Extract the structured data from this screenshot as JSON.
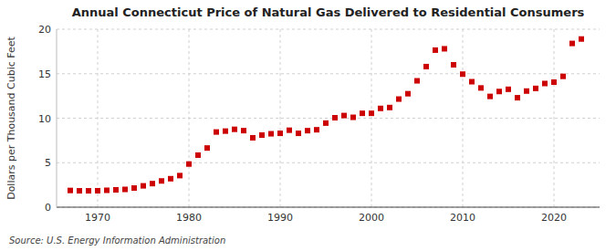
{
  "chart_data": {
    "type": "scatter",
    "title": "Annual Connecticut Price of Natural Gas Delivered to Residential Consumers",
    "ylabel": "Dollars per Thousand Cubic Feet",
    "annotations": [
      "Source: U.S. Energy Information Administration"
    ],
    "x": [
      1967,
      1968,
      1969,
      1970,
      1971,
      1972,
      1973,
      1974,
      1975,
      1976,
      1977,
      1978,
      1979,
      1980,
      1981,
      1982,
      1983,
      1984,
      1985,
      1986,
      1987,
      1988,
      1989,
      1990,
      1991,
      1992,
      1993,
      1994,
      1995,
      1996,
      1997,
      1998,
      1999,
      2000,
      2001,
      2002,
      2003,
      2004,
      2005,
      2006,
      2007,
      2008,
      2009,
      2010,
      2011,
      2012,
      2013,
      2014,
      2015,
      2016,
      2017,
      2018,
      2019,
      2020,
      2021,
      2022,
      2023
    ],
    "values": [
      1.88,
      1.84,
      1.84,
      1.85,
      1.9,
      1.95,
      2.0,
      2.15,
      2.4,
      2.65,
      2.95,
      3.2,
      3.55,
      4.85,
      5.85,
      6.65,
      8.45,
      8.55,
      8.75,
      8.6,
      7.8,
      8.1,
      8.25,
      8.3,
      8.65,
      8.3,
      8.6,
      8.7,
      9.45,
      10.05,
      10.3,
      10.1,
      10.55,
      10.55,
      11.1,
      11.2,
      12.15,
      12.75,
      14.2,
      15.8,
      17.65,
      17.8,
      16.0,
      14.95,
      14.1,
      13.4,
      12.45,
      13.0,
      13.25,
      12.3,
      13.05,
      13.35,
      13.9,
      14.05,
      14.7,
      18.4,
      18.9
    ],
    "color": "#cc0000",
    "marker": "square",
    "grid": true,
    "xlim": [
      1965.5,
      2025
    ],
    "ylim": [
      0,
      20
    ],
    "xticks": [
      1970,
      1980,
      1990,
      2000,
      2010,
      2020
    ],
    "yticks": [
      0,
      5,
      10,
      15,
      20
    ]
  }
}
